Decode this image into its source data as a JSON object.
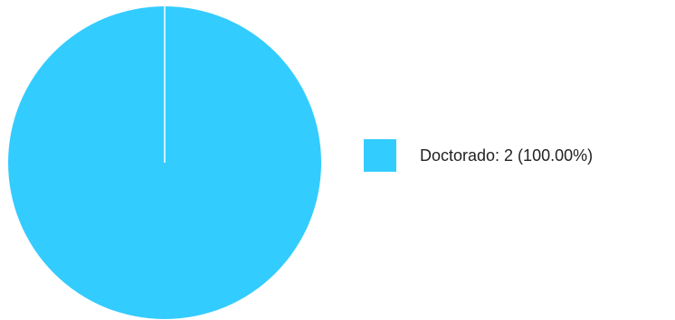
{
  "chart_data": {
    "type": "pie",
    "slices": [
      {
        "label": "Doctorado",
        "value": 2,
        "percent": 100.0,
        "color": "#33ccff"
      }
    ],
    "legend": {
      "placement": "right",
      "entries": [
        {
          "text": "Doctorado: 2 (100.00%)",
          "color": "#33ccff"
        }
      ]
    },
    "slice_border_color": "#ffffff"
  }
}
